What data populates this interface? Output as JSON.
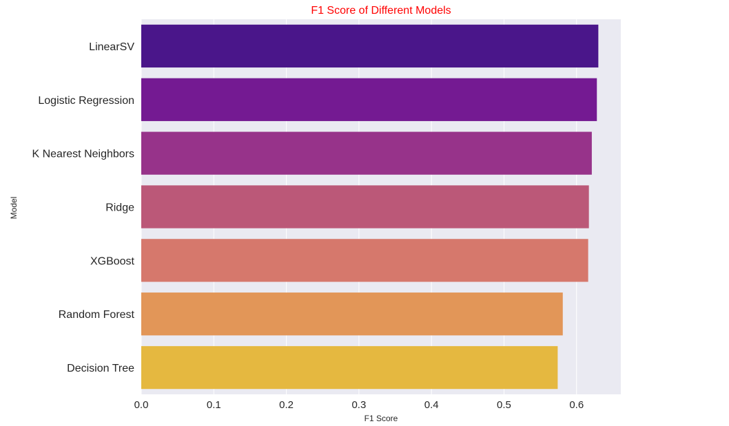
{
  "chart_data": {
    "type": "bar",
    "orientation": "horizontal",
    "title": "F1 Score of Different Models",
    "xlabel": "F1 Score",
    "ylabel": "Model",
    "categories": [
      "LinearSV",
      "Logistic Regression",
      "K Nearest Neighbors",
      "Ridge",
      "XGBoost",
      "Random Forest",
      "Decision Tree"
    ],
    "values": [
      0.63,
      0.628,
      0.621,
      0.617,
      0.616,
      0.581,
      0.574
    ],
    "colors": [
      "#4a168a",
      "#741a92",
      "#97338a",
      "#bb5878",
      "#d6786c",
      "#e29658",
      "#e5b840"
    ],
    "xlim": [
      0.0,
      0.661
    ],
    "xticks": [
      "0.0",
      "0.1",
      "0.2",
      "0.3",
      "0.4",
      "0.5",
      "0.6"
    ],
    "grid": true,
    "background": "#eaeaf2",
    "title_color": "#ff0000"
  }
}
